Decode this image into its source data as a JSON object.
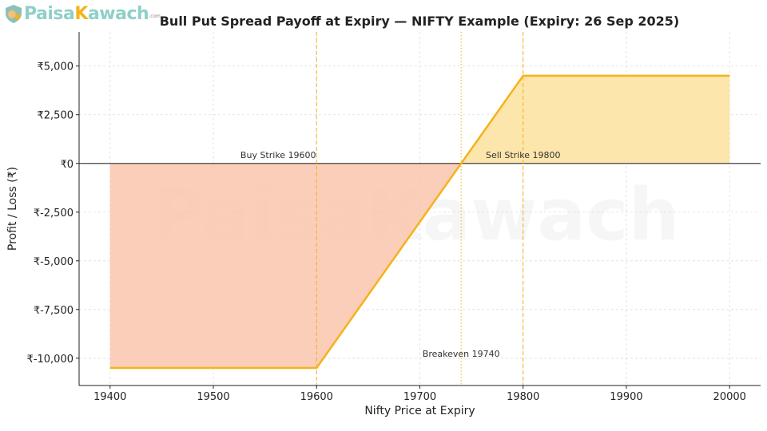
{
  "logo": {
    "text": "PaisaKawach.com"
  },
  "watermark": {
    "text": "PaisaKawach"
  },
  "chart_data": {
    "type": "line",
    "title": "Bull Put Spread Payoff at Expiry — NIFTY Example (Expiry: 26 Sep 2025)",
    "xlabel": "Nifty Price at Expiry",
    "ylabel": "Profit / Loss (₹)",
    "xlim": [
      19370,
      20030
    ],
    "ylim": [
      -11400,
      6750
    ],
    "xticks": [
      19400,
      19500,
      19600,
      19700,
      19800,
      19900,
      20000
    ],
    "xtick_labels": [
      "19400",
      "19500",
      "19600",
      "19700",
      "19800",
      "19900",
      "20000"
    ],
    "yticks": [
      5000,
      2500,
      0,
      -2500,
      -5000,
      -7500,
      -10000
    ],
    "ytick_labels": [
      "₹5,000",
      "₹2,500",
      "₹0",
      "₹-2,500",
      "₹-5,000",
      "₹-7,500",
      "₹-10,000"
    ],
    "grid": true,
    "series": [
      {
        "x": [
          19400,
          19600,
          19800,
          20000
        ],
        "y": [
          -10500,
          -10500,
          4500,
          4500
        ]
      }
    ],
    "vlines": [
      {
        "x": 19600,
        "label": "Buy Strike 19600",
        "style": "dashed"
      },
      {
        "x": 19800,
        "label": "Sell Strike 19800",
        "style": "dashed"
      },
      {
        "x": 19740,
        "label": "Breakeven 19740",
        "style": "dotted"
      }
    ],
    "colors": {
      "line": "#f5b21b",
      "profit_fill": "#fde3a2",
      "loss_fill": "#f9c6ad",
      "zero_line": "#444444",
      "grid": "#dddddd"
    }
  }
}
